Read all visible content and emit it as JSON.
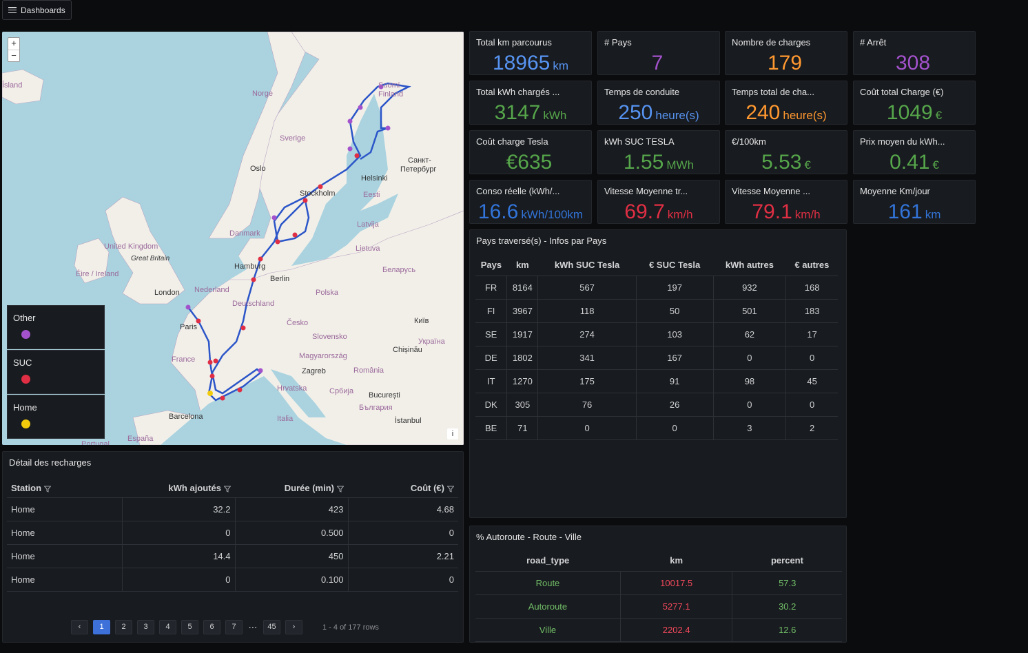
{
  "header": {
    "dashboards_label": "Dashboards"
  },
  "map": {
    "zoom_in": "+",
    "zoom_out": "−",
    "info": "i",
    "labels": [
      {
        "text": "Ísland",
        "cls": "country"
      },
      {
        "text": "Norge",
        "cls": "country"
      },
      {
        "text": "Sverige",
        "cls": "country"
      },
      {
        "text": "Suomi",
        "cls": "country"
      },
      {
        "text": "Finland",
        "cls": "country"
      },
      {
        "text": "Санкт-",
        "cls": "city"
      },
      {
        "text": "Петербург",
        "cls": "city"
      },
      {
        "text": "Helsinki",
        "cls": "city"
      },
      {
        "text": "Oslo",
        "cls": "city"
      },
      {
        "text": "Stockholm",
        "cls": "city"
      },
      {
        "text": "Eesti",
        "cls": "country"
      },
      {
        "text": "Latvija",
        "cls": "country"
      },
      {
        "text": "Lietuva",
        "cls": "country"
      },
      {
        "text": "Danmark",
        "cls": "country"
      },
      {
        "text": "United Kingdom",
        "cls": "country"
      },
      {
        "text": "Great Britain",
        "cls": "it"
      },
      {
        "text": "Éire / Ireland",
        "cls": "country"
      },
      {
        "text": "London",
        "cls": "city"
      },
      {
        "text": "Nederland",
        "cls": "country"
      },
      {
        "text": "Hamburg",
        "cls": "city"
      },
      {
        "text": "Berlin",
        "cls": "city"
      },
      {
        "text": "Беларусь",
        "cls": "country"
      },
      {
        "text": "Polska",
        "cls": "country"
      },
      {
        "text": "Deutschland",
        "cls": "country"
      },
      {
        "text": "Paris",
        "cls": "city"
      },
      {
        "text": "Česko",
        "cls": "country"
      },
      {
        "text": "Київ",
        "cls": "city"
      },
      {
        "text": "Slovensko",
        "cls": "country"
      },
      {
        "text": "Україна",
        "cls": "country"
      },
      {
        "text": "France",
        "cls": "country"
      },
      {
        "text": "Magyarország",
        "cls": "country"
      },
      {
        "text": "Chișinău",
        "cls": "city"
      },
      {
        "text": "Zagreb",
        "cls": "city"
      },
      {
        "text": "România",
        "cls": "country"
      },
      {
        "text": "Hrvatska",
        "cls": "country"
      },
      {
        "text": "Србија",
        "cls": "country"
      },
      {
        "text": "București",
        "cls": "city"
      },
      {
        "text": "България",
        "cls": "country"
      },
      {
        "text": "Barcelona",
        "cls": "city"
      },
      {
        "text": "Italia",
        "cls": "country"
      },
      {
        "text": "İstanbul",
        "cls": "city"
      },
      {
        "text": "España",
        "cls": "country"
      },
      {
        "text": "Portugal",
        "cls": "country"
      }
    ],
    "legend": [
      {
        "label": "Other",
        "color": "#a352cc"
      },
      {
        "label": "SUC",
        "color": "#e02f44"
      },
      {
        "label": "Home",
        "color": "#f2cc0c"
      }
    ]
  },
  "stats": [
    {
      "title": "Total km parcourus",
      "value": "18965",
      "unit": "km",
      "color": "#5794f2"
    },
    {
      "title": "# Pays",
      "value": "7",
      "unit": "",
      "color": "#a352cc"
    },
    {
      "title": "Nombre de charges",
      "value": "179",
      "unit": "",
      "color": "#ff9830"
    },
    {
      "title": "# Arrêt",
      "value": "308",
      "unit": "",
      "color": "#a352cc"
    },
    {
      "title": "Total kWh chargés ...",
      "value": "3147",
      "unit": "kWh",
      "color": "#56a64b"
    },
    {
      "title": "Temps de conduite",
      "value": "250",
      "unit": "heure(s)",
      "color": "#5794f2"
    },
    {
      "title": "Temps total de cha...",
      "value": "240",
      "unit": "heure(s)",
      "color": "#ff9830"
    },
    {
      "title": "Coût total Charge (€)",
      "value": "1049",
      "unit": "€",
      "color": "#56a64b"
    },
    {
      "title": "Coût charge Tesla",
      "value": "€635",
      "unit": "",
      "color": "#56a64b"
    },
    {
      "title": "kWh SUC TESLA",
      "value": "1.55",
      "unit": "MWh",
      "color": "#56a64b"
    },
    {
      "title": "€/100km",
      "value": "5.53",
      "unit": "€",
      "color": "#56a64b"
    },
    {
      "title": "Prix moyen du kWh...",
      "value": "0.41",
      "unit": "€",
      "color": "#56a64b"
    },
    {
      "title": "Conso réelle (kWh/...",
      "value": "16.6",
      "unit": "kWh/100km",
      "color": "#3274d9"
    },
    {
      "title": "Vitesse Moyenne tr...",
      "value": "69.7",
      "unit": "km/h",
      "color": "#e02f44"
    },
    {
      "title": "Vitesse Moyenne ...",
      "value": "79.1",
      "unit": "km/h",
      "color": "#e02f44"
    },
    {
      "title": "Moyenne Km/jour",
      "value": "161",
      "unit": "km",
      "color": "#3274d9"
    }
  ],
  "pays": {
    "title": "Pays traversé(s) - Infos par Pays",
    "headers": [
      "Pays",
      "km",
      "kWh SUC Tesla",
      "€ SUC Tesla",
      "kWh autres",
      "€ autres"
    ],
    "rows": [
      [
        "FR",
        "8164",
        "567",
        "197",
        "932",
        "168"
      ],
      [
        "FI",
        "3967",
        "118",
        "50",
        "501",
        "183"
      ],
      [
        "SE",
        "1917",
        "274",
        "103",
        "62",
        "17"
      ],
      [
        "DE",
        "1802",
        "341",
        "167",
        "0",
        "0"
      ],
      [
        "IT",
        "1270",
        "175",
        "91",
        "98",
        "45"
      ],
      [
        "DK",
        "305",
        "76",
        "26",
        "0",
        "0"
      ],
      [
        "BE",
        "71",
        "0",
        "0",
        "3",
        "2"
      ]
    ]
  },
  "details": {
    "title": "Détail des recharges",
    "headers": [
      "Station",
      "kWh ajoutés",
      "Durée (min)",
      "Coût (€)"
    ],
    "rows": [
      [
        "Home",
        "32.2",
        "423",
        "4.68"
      ],
      [
        "Home",
        "0",
        "0.500",
        "0"
      ],
      [
        "Home",
        "14.4",
        "450",
        "2.21"
      ],
      [
        "Home",
        "0",
        "0.100",
        "0"
      ]
    ],
    "pages": [
      "1",
      "2",
      "3",
      "4",
      "5",
      "6",
      "7"
    ],
    "ellipsis": "⋯",
    "last_page": "45",
    "prev": "‹",
    "next": "›",
    "rows_info": "1 - 4 of 177 rows"
  },
  "road": {
    "title": "% Autoroute - Route - Ville",
    "headers": [
      "road_type",
      "km",
      "percent"
    ],
    "rows": [
      [
        "Route",
        "10017.5",
        "57.3"
      ],
      [
        "Autoroute",
        "5277.1",
        "30.2"
      ],
      [
        "Ville",
        "2202.4",
        "12.6"
      ]
    ],
    "colors": {
      "type": "#73bf69",
      "km": "#f2495c",
      "percent": "#73bf69"
    }
  }
}
